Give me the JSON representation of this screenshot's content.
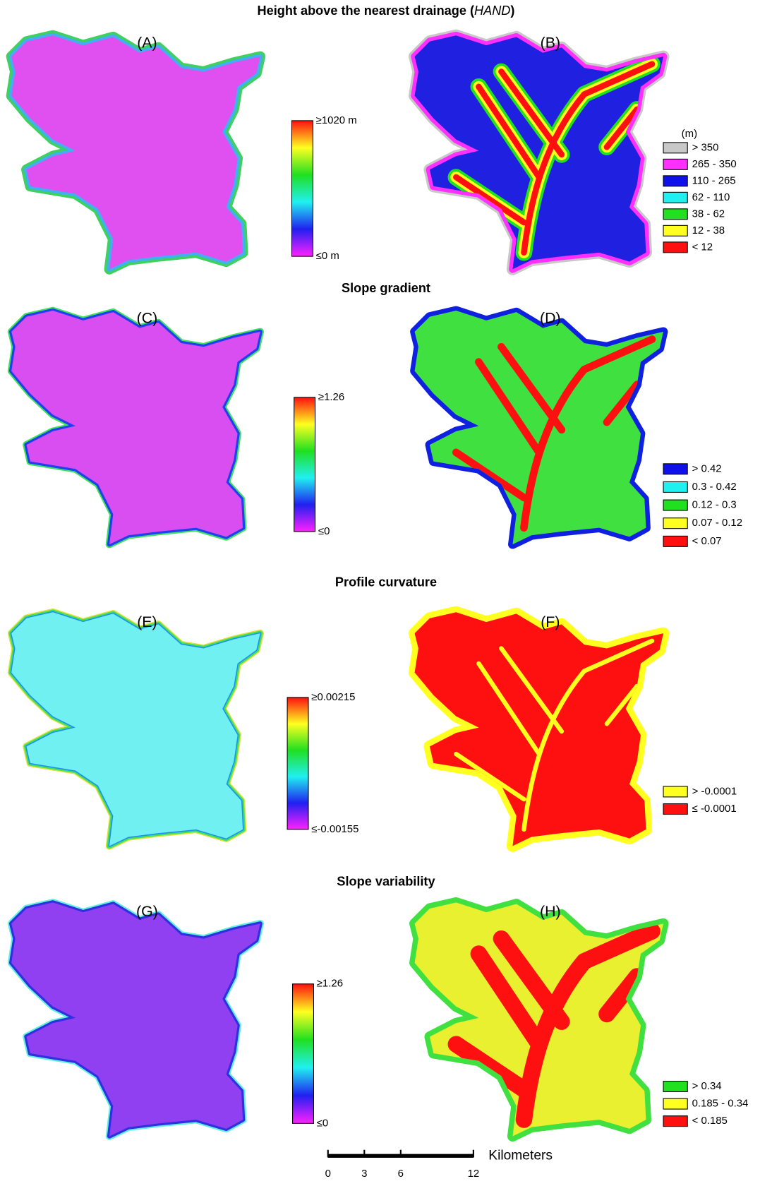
{
  "sections": [
    {
      "title": [
        {
          "text": "Height above the nearest drainage ("
        },
        {
          "text": "HAND",
          "italic": true
        },
        {
          "text": ")"
        }
      ],
      "panels": [
        {
          "label": "(A)",
          "colorbar": {
            "max": "≥1020 m",
            "min": "≤0 m"
          }
        },
        {
          "label": "(B)",
          "legend": {
            "title": "(m)",
            "items": [
              {
                "label": "> 350",
                "color": "#c8c8c8"
              },
              {
                "label": "265 - 350",
                "color": "#ff30ff"
              },
              {
                "label": "110 - 265",
                "color": "#1010e8"
              },
              {
                "label": "62 - 110",
                "color": "#20f0f0"
              },
              {
                "label": "38 - 62",
                "color": "#20e020"
              },
              {
                "label": "12 - 38",
                "color": "#ffff20"
              },
              {
                "label": "< 12",
                "color": "#ff1010"
              }
            ]
          }
        }
      ]
    },
    {
      "title": [
        {
          "text": "Slope gradient"
        }
      ],
      "panels": [
        {
          "label": "(C)",
          "colorbar": {
            "max": "≥1.26",
            "min": "≤0"
          }
        },
        {
          "label": "(D)",
          "legend": {
            "items": [
              {
                "label": "> 0.42",
                "color": "#1010e8"
              },
              {
                "label": "0.3 - 0.42",
                "color": "#20f0f0"
              },
              {
                "label": "0.12 - 0.3",
                "color": "#20e020"
              },
              {
                "label": "0.07 - 0.12",
                "color": "#ffff20"
              },
              {
                "label": "< 0.07",
                "color": "#ff1010"
              }
            ]
          }
        }
      ]
    },
    {
      "title": [
        {
          "text": "Profile curvature"
        }
      ],
      "panels": [
        {
          "label": "(E)",
          "colorbar": {
            "max": "≥0.00215",
            "min": "≤-0.00155"
          }
        },
        {
          "label": "(F)",
          "legend": {
            "items": [
              {
                "label": "> -0.0001",
                "color": "#ffff20"
              },
              {
                "label": "≤ -0.0001",
                "color": "#ff1010"
              }
            ]
          }
        }
      ]
    },
    {
      "title": [
        {
          "text": "Slope variability"
        }
      ],
      "panels": [
        {
          "label": "(G)",
          "colorbar": {
            "max": "≥1.26",
            "min": "≤0"
          }
        },
        {
          "label": "(H)",
          "legend": {
            "items": [
              {
                "label": "> 0.34",
                "color": "#20e020"
              },
              {
                "label": "0.185 - 0.34",
                "color": "#ffff20"
              },
              {
                "label": "< 0.185",
                "color": "#ff1010"
              }
            ]
          }
        }
      ]
    }
  ],
  "scale_bar": {
    "ticks": [
      0,
      3,
      6,
      12
    ],
    "unit": "Kilometers"
  }
}
